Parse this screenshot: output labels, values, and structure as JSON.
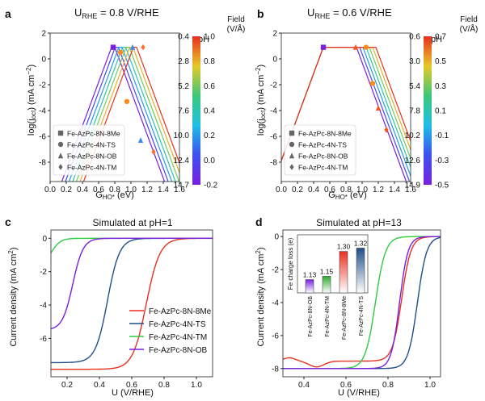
{
  "panels": {
    "a": {
      "letter": "a",
      "title_main": "U",
      "title_sub": "RHE",
      "title_rest": " =  0.8 V/RHE",
      "ylabel": "log(j",
      "ylabel_sub": "oct",
      "ylabel_rest": ") (mA cm",
      "ylabel_sup": "−2",
      "ylabel_end": ")",
      "xlabel": "G",
      "xlabel_sub": "HO*",
      "xlabel_rest": " (eV)",
      "ph_label": "pH",
      "field_label": "Field",
      "field_unit": "(V/Å)",
      "ph_ticks": [
        "0.4",
        "2.8",
        "5.2",
        "7.6",
        "10.0",
        "12.4",
        "14.7"
      ],
      "field_ticks": [
        "1.0",
        "0.8",
        "0.6",
        "0.4",
        "0.2",
        "0.0",
        "-0.2"
      ],
      "legend": [
        "Fe-AzPc-8N-8Me",
        "Fe-AzPc-4N-TS",
        "Fe-AzPc-8N-OB",
        "Fe-AzPc-4N-TM"
      ]
    },
    "b": {
      "letter": "b",
      "title_main": "U",
      "title_sub": "RHE",
      "title_rest": " =  0.6 V/RHE",
      "ylabel": "log(j",
      "ylabel_sub": "oct",
      "ylabel_rest": ") (mA cm",
      "ylabel_sup": "−2",
      "ylabel_end": ")",
      "xlabel": "G",
      "xlabel_sub": "HO*",
      "xlabel_rest": " (eV)",
      "ph_label": "pH",
      "field_label": "Field",
      "field_unit": "(V/Å)",
      "ph_ticks": [
        "0.6",
        "3.0",
        "5.4",
        "7.8",
        "10.2",
        "12.6",
        "14.9"
      ],
      "field_ticks": [
        "0.7",
        "0.5",
        "0.3",
        "0.1",
        "-0.1",
        "-0.3",
        "-0.5"
      ],
      "legend": [
        "Fe-AzPc-8N-8Me",
        "Fe-AzPc-4N-TS",
        "Fe-AzPc-8N-OB",
        "Fe-AzPc-4N-TM"
      ]
    },
    "c": {
      "letter": "c",
      "title": "Simulated at pH=1",
      "xlabel": "U (V/RHE)",
      "ylabel": "Current density (mA cm",
      "ylabel_sup": "2",
      "ylabel_end": ")",
      "legend": [
        "Fe-AzPc-8N-8Me",
        "Fe-AzPc-4N-TS",
        "Fe-AzPc-4N-TM",
        "Fe-AzPc-8N-OB"
      ]
    },
    "d": {
      "letter": "d",
      "title": "Simulated at pH=13",
      "xlabel": "U (V/RHE)",
      "ylabel": "Current density (mA cm",
      "ylabel_sup": "2",
      "ylabel_end": ")",
      "inset_ylabel": "Fe charge loss (e)",
      "inset_values": [
        "1.13",
        "1.15",
        "1.30",
        "1.32"
      ],
      "inset_cats": [
        "Fe-AzPc-8N-OB",
        "Fe-AzPc-4N-TM",
        "Fe-AzPc-8N-8Me",
        "Fe-AzPc-4N-TS"
      ]
    }
  },
  "colors": {
    "red": "#e8301f",
    "blue": "#1f4f8a",
    "green": "#2ecc40",
    "purple": "#7a1fe0"
  },
  "chart_data": [
    {
      "panel": "a",
      "type": "line",
      "title": "URHE = 0.8 V/RHE",
      "xlabel": "GHO* (eV)",
      "ylabel": "log(joct) (mA cm−2)",
      "xlim": [
        0,
        1.6
      ],
      "ylim": [
        -9.5,
        2
      ],
      "xticks": [
        0.0,
        0.2,
        0.4,
        0.6,
        0.8,
        1.0,
        1.2,
        1.4,
        1.6
      ],
      "yticks": [
        -8,
        -6,
        -4,
        -2,
        0,
        2
      ],
      "volcano": {
        "left_slope": 16.9,
        "plateau": 0.9,
        "right_slope": -16.9,
        "peak_shift_per_curve": 0.045,
        "n_curves": 7,
        "first_peak": 0.78
      },
      "points": [
        {
          "series": "Fe-AzPc-8N-8Me",
          "marker": "square",
          "x": 0.78,
          "y": 0.9
        },
        {
          "series": "Fe-AzPc-4N-TS",
          "marker": "circle",
          "x": 0.95,
          "y": -3.3
        },
        {
          "series": "Fe-AzPc-8N-OB",
          "marker": "triangle",
          "x": 1.02,
          "y": 0.9
        },
        {
          "series": "Fe-AzPc-4N-TM",
          "marker": "diamond",
          "x": 1.15,
          "y": 0.9
        },
        {
          "series": "Fe-AzPc-4N-TS",
          "marker": "circle",
          "x": 0.87,
          "y": 0.5
        },
        {
          "series": "Fe-AzPc-8N-OB",
          "marker": "triangle",
          "x": 1.12,
          "y": -6.3
        },
        {
          "series": "Fe-AzPc-4N-TM",
          "marker": "diamond",
          "x": 1.28,
          "y": -7.2
        }
      ]
    },
    {
      "panel": "b",
      "type": "line",
      "title": "URHE = 0.6 V/RHE",
      "xlabel": "GHO* (eV)",
      "ylabel": "log(joct) (mA cm−2)",
      "xlim": [
        0,
        1.6
      ],
      "ylim": [
        -9.5,
        2
      ],
      "xticks": [
        0.0,
        0.2,
        0.4,
        0.6,
        0.8,
        1.0,
        1.2,
        1.4,
        1.6
      ],
      "yticks": [
        -8,
        -6,
        -4,
        -2,
        0,
        2
      ],
      "volcano": {
        "left_slope": 16.9,
        "plateau": 0.9,
        "right_slope": -16.9,
        "first_right_knee": 0.93,
        "knee_shift_per_curve": 0.04,
        "n_curves": 7,
        "left_knee": 0.52
      },
      "points": [
        {
          "series": "Fe-AzPc-8N-8Me",
          "marker": "square",
          "x": 0.52,
          "y": 0.9
        },
        {
          "series": "Fe-AzPc-4N-TS",
          "marker": "circle",
          "x": 1.13,
          "y": -1.9
        },
        {
          "series": "Fe-AzPc-8N-OB",
          "marker": "triangle",
          "x": 0.92,
          "y": 0.9
        },
        {
          "series": "Fe-AzPc-4N-TM",
          "marker": "diamond",
          "x": 1.3,
          "y": -5.5
        },
        {
          "series": "Fe-AzPc-4N-TS",
          "marker": "circle",
          "x": 1.05,
          "y": 0.9
        },
        {
          "series": "Fe-AzPc-8N-OB",
          "marker": "triangle",
          "x": 1.2,
          "y": -3.8
        }
      ]
    },
    {
      "panel": "c",
      "type": "line",
      "title": "Simulated at pH=1",
      "xlabel": "U (V/RHE)",
      "ylabel": "Current density (mA cm2)",
      "xlim": [
        0.1,
        1.1
      ],
      "ylim": [
        -8.3,
        0.5
      ],
      "xticks": [
        0.2,
        0.4,
        0.6,
        0.8,
        1.0
      ],
      "yticks": [
        0,
        -2,
        -4,
        -6
      ],
      "series": [
        {
          "name": "Fe-AzPc-8N-8Me",
          "color": "red",
          "jL": -7.85,
          "E0": 0.69,
          "w": 0.042
        },
        {
          "name": "Fe-AzPc-4N-TS",
          "color": "blue",
          "jL": -7.45,
          "E0": 0.45,
          "w": 0.037
        },
        {
          "name": "Fe-AzPc-4N-TM",
          "color": "green",
          "jL": -1.6,
          "E0": 0.105,
          "w": 0.028
        },
        {
          "name": "Fe-AzPc-8N-OB",
          "color": "purple",
          "jL": -5.5,
          "E0": 0.235,
          "w": 0.032
        }
      ]
    },
    {
      "panel": "d",
      "type": "line",
      "title": "Simulated at pH=13",
      "xlabel": "U (V/RHE)",
      "ylabel": "Current density (mA cm2)",
      "xlim": [
        0.3,
        1.05
      ],
      "ylim": [
        -8.5,
        0.4
      ],
      "xticks": [
        0.4,
        0.6,
        0.8,
        1.0
      ],
      "yticks": [
        0,
        -2,
        -4,
        -6,
        -8
      ],
      "series": [
        {
          "name": "Fe-AzPc-8N-8Me",
          "color": "red",
          "jL": -7.55,
          "E0": 0.865,
          "w": 0.022
        },
        {
          "name": "Fe-AzPc-4N-TS",
          "color": "blue",
          "jL": -8.0,
          "E0": 0.94,
          "w": 0.022
        },
        {
          "name": "Fe-AzPc-4N-TM",
          "color": "green",
          "jL": -8.0,
          "E0": 0.74,
          "w": 0.024
        },
        {
          "name": "Fe-AzPc-8N-OB",
          "color": "purple",
          "jL": -8.0,
          "E0": 0.855,
          "w": 0.02
        }
      ],
      "inset": {
        "type": "bar",
        "ylabel": "Fe charge loss (e)",
        "categories": [
          "Fe-AzPc-8N-OB",
          "Fe-AzPc-4N-TM",
          "Fe-AzPc-8N-8Me",
          "Fe-AzPc-4N-TS"
        ],
        "values": [
          1.13,
          1.15,
          1.3,
          1.32
        ],
        "ylim": [
          1.05,
          1.4
        ]
      }
    }
  ]
}
